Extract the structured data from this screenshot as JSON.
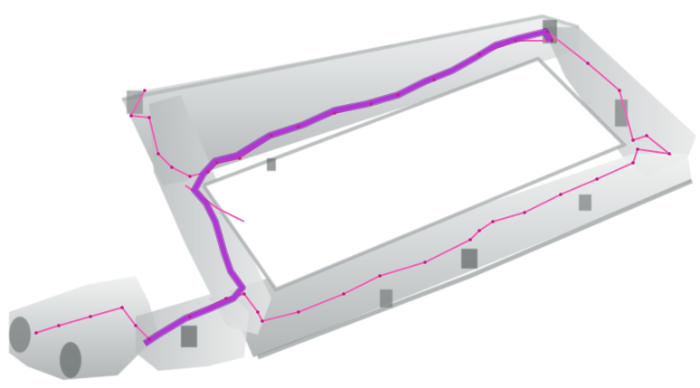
{
  "scene": {
    "colors": {
      "background": "#ffffff",
      "wall_light": "#e2e4e4",
      "wall_mid": "#bfc3c4",
      "wall_dark": "#8d9394",
      "floor": "#d8dbdb",
      "route_pink": "#f25fb8",
      "route_purple": "#b236d6",
      "route_purple_edge": "#7a1fa0",
      "node": "#c21f86"
    }
  }
}
